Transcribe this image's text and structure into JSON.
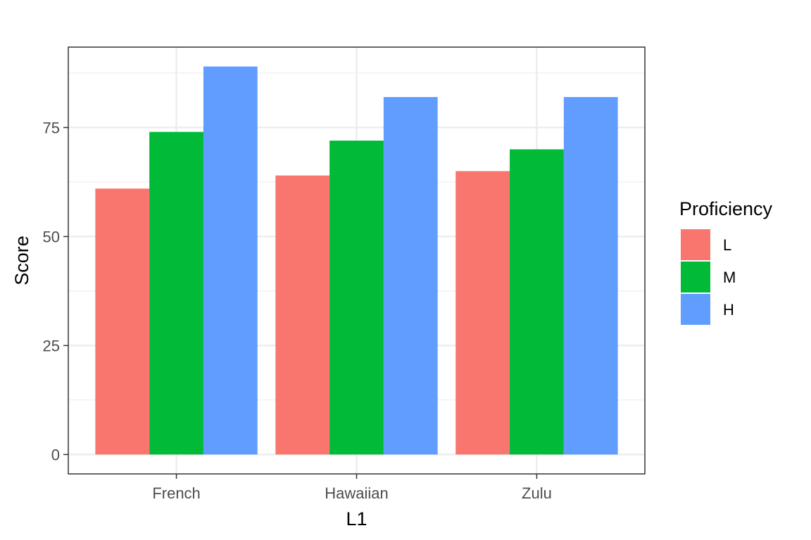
{
  "chart_data": {
    "type": "bar",
    "categories": [
      "French",
      "Hawaiian",
      "Zulu"
    ],
    "series": [
      {
        "name": "L",
        "values": [
          61,
          64,
          65
        ],
        "color": "#F8766D"
      },
      {
        "name": "M",
        "values": [
          74,
          72,
          70
        ],
        "color": "#00BA38"
      },
      {
        "name": "H",
        "values": [
          89,
          82,
          82
        ],
        "color": "#619CFF"
      }
    ],
    "xlabel": "L1",
    "ylabel": "Score",
    "ylim": [
      -4.45,
      93.45
    ],
    "yticks": [
      0,
      25,
      50,
      75
    ],
    "legend": {
      "title": "Proficiency",
      "placement": "right"
    },
    "grid": true
  }
}
